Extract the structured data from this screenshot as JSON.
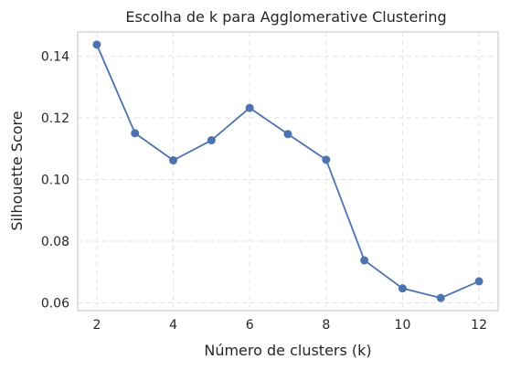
{
  "chart_data": {
    "type": "line",
    "title": "Escolha de k para Agglomerative Clustering",
    "xlabel": "Número de clusters (k)",
    "ylabel": "Silhouette Score",
    "x": [
      2,
      3,
      4,
      5,
      6,
      7,
      8,
      9,
      10,
      11,
      12
    ],
    "series": [
      {
        "values": [
          0.1437,
          0.115,
          0.1062,
          0.1127,
          0.1232,
          0.1147,
          0.1064,
          0.0738,
          0.0647,
          0.0616,
          0.067
        ]
      }
    ],
    "xticks": [
      "2",
      "4",
      "6",
      "8",
      "10",
      "12"
    ],
    "yticks": [
      "0.06",
      "0.08",
      "0.10",
      "0.12",
      "0.14"
    ],
    "xlim": [
      1.5,
      12.5
    ],
    "ylim": [
      0.0575,
      0.1478
    ],
    "grid": true,
    "grid_style": "dashed",
    "marker": "circle",
    "line_color": "#4c72b0"
  }
}
